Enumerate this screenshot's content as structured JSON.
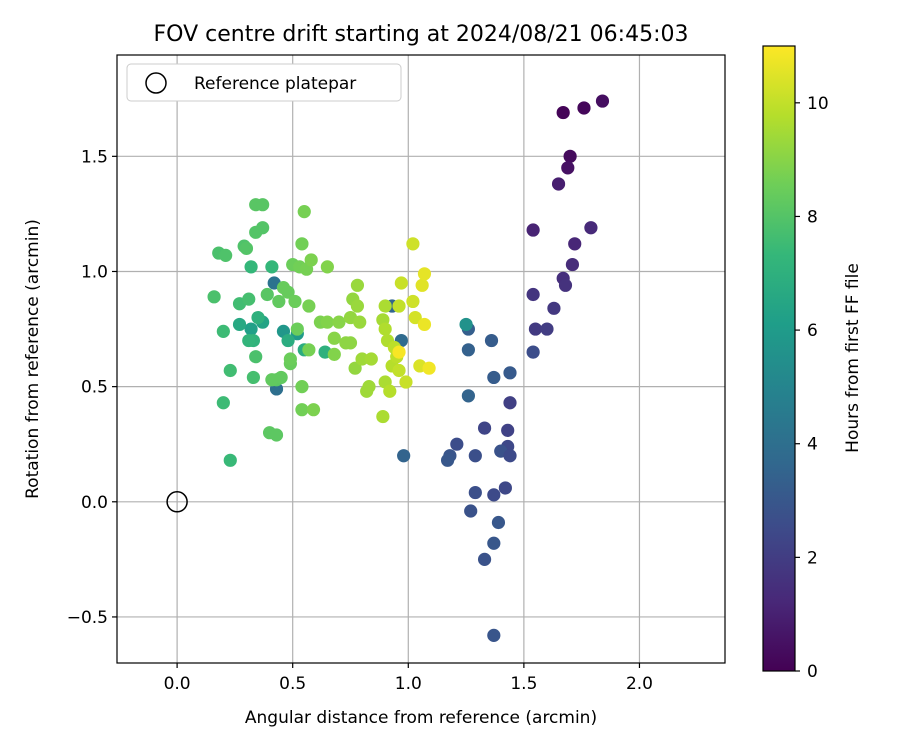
{
  "chart_data": {
    "type": "scatter",
    "title": "FOV centre drift starting at 2024/08/21 06:45:03",
    "xlabel": "Angular distance from reference (arcmin)",
    "ylabel": "Rotation from reference (arcmin)",
    "xlim": [
      -0.26,
      2.37
    ],
    "ylim": [
      -0.7,
      1.94
    ],
    "x_ticks": [
      0.0,
      0.5,
      1.0,
      1.5,
      2.0
    ],
    "x_tick_labels": [
      "0.0",
      "0.5",
      "1.0",
      "1.5",
      "2.0"
    ],
    "y_ticks": [
      -0.5,
      0.0,
      0.5,
      1.0,
      1.5
    ],
    "y_tick_labels": [
      "−0.5",
      "0.0",
      "0.5",
      "1.0",
      "1.5"
    ],
    "grid": true,
    "legend": {
      "placement": "top-left",
      "entries": [
        "Reference platepar"
      ]
    },
    "reference_point": {
      "x": 0.0,
      "y": 0.0,
      "label": "Reference platepar"
    },
    "colorbar": {
      "label": "Hours from first FF file",
      "colormap": "viridis",
      "range": [
        0,
        11
      ],
      "ticks": [
        0,
        2,
        4,
        6,
        8,
        10
      ],
      "tick_labels": [
        "0",
        "2",
        "4",
        "6",
        "8",
        "10"
      ]
    },
    "color_ramp": [
      "#440154",
      "#482878",
      "#3e4989",
      "#31688e",
      "#26828e",
      "#1f9e89",
      "#35b779",
      "#6ece58",
      "#b5de2b",
      "#fde725"
    ],
    "points": [
      {
        "x": 1.67,
        "y": 1.69,
        "h": 0.1
      },
      {
        "x": 1.76,
        "y": 1.71,
        "h": 0.2
      },
      {
        "x": 1.84,
        "y": 1.74,
        "h": 0.4
      },
      {
        "x": 1.7,
        "y": 1.5,
        "h": 0.3
      },
      {
        "x": 1.69,
        "y": 1.45,
        "h": 0.5
      },
      {
        "x": 1.65,
        "y": 1.38,
        "h": 0.9
      },
      {
        "x": 1.54,
        "y": 1.18,
        "h": 1.1
      },
      {
        "x": 1.72,
        "y": 1.12,
        "h": 1.2
      },
      {
        "x": 1.79,
        "y": 1.19,
        "h": 1.3
      },
      {
        "x": 1.71,
        "y": 1.03,
        "h": 1.4
      },
      {
        "x": 1.67,
        "y": 0.97,
        "h": 1.5
      },
      {
        "x": 1.68,
        "y": 0.94,
        "h": 1.6
      },
      {
        "x": 1.54,
        "y": 0.9,
        "h": 1.7
      },
      {
        "x": 1.63,
        "y": 0.84,
        "h": 1.8
      },
      {
        "x": 1.55,
        "y": 0.75,
        "h": 1.9
      },
      {
        "x": 1.6,
        "y": 0.75,
        "h": 2.0
      },
      {
        "x": 1.44,
        "y": 0.43,
        "h": 2.1
      },
      {
        "x": 1.54,
        "y": 0.65,
        "h": 2.6
      },
      {
        "x": 1.44,
        "y": 0.56,
        "h": 3.1
      },
      {
        "x": 1.37,
        "y": 0.54,
        "h": 3.2
      },
      {
        "x": 1.36,
        "y": 0.7,
        "h": 3.2
      },
      {
        "x": 1.26,
        "y": 0.75,
        "h": 3.3
      },
      {
        "x": 1.26,
        "y": 0.66,
        "h": 3.4
      },
      {
        "x": 1.26,
        "y": 0.46,
        "h": 3.5
      },
      {
        "x": 1.33,
        "y": 0.32,
        "h": 2.3
      },
      {
        "x": 1.43,
        "y": 0.31,
        "h": 2.2
      },
      {
        "x": 1.43,
        "y": 0.24,
        "h": 2.4
      },
      {
        "x": 1.4,
        "y": 0.22,
        "h": 2.8
      },
      {
        "x": 1.44,
        "y": 0.2,
        "h": 2.5
      },
      {
        "x": 1.29,
        "y": 0.2,
        "h": 2.7
      },
      {
        "x": 1.21,
        "y": 0.25,
        "h": 2.6
      },
      {
        "x": 1.18,
        "y": 0.2,
        "h": 2.9
      },
      {
        "x": 1.17,
        "y": 0.18,
        "h": 3.0
      },
      {
        "x": 1.42,
        "y": 0.06,
        "h": 2.4
      },
      {
        "x": 1.37,
        "y": 0.03,
        "h": 2.5
      },
      {
        "x": 1.29,
        "y": 0.04,
        "h": 2.7
      },
      {
        "x": 1.27,
        "y": -0.04,
        "h": 2.8
      },
      {
        "x": 1.39,
        "y": -0.09,
        "h": 3.0
      },
      {
        "x": 1.37,
        "y": -0.18,
        "h": 3.0
      },
      {
        "x": 1.33,
        "y": -0.25,
        "h": 2.8
      },
      {
        "x": 1.37,
        "y": -0.58,
        "h": 2.9
      },
      {
        "x": 0.98,
        "y": 0.2,
        "h": 3.5
      },
      {
        "x": 0.93,
        "y": 0.85,
        "h": 3.6
      },
      {
        "x": 0.97,
        "y": 0.7,
        "h": 3.8
      },
      {
        "x": 0.43,
        "y": 0.49,
        "h": 4.0
      },
      {
        "x": 0.42,
        "y": 0.95,
        "h": 4.2
      },
      {
        "x": 1.25,
        "y": 0.77,
        "h": 5.6
      },
      {
        "x": 0.46,
        "y": 0.74,
        "h": 5.8
      },
      {
        "x": 0.52,
        "y": 0.73,
        "h": 6.0
      },
      {
        "x": 0.32,
        "y": 0.75,
        "h": 6.2
      },
      {
        "x": 0.37,
        "y": 0.78,
        "h": 6.4
      },
      {
        "x": 0.27,
        "y": 0.77,
        "h": 6.6
      },
      {
        "x": 0.48,
        "y": 0.7,
        "h": 6.8
      },
      {
        "x": 0.55,
        "y": 0.66,
        "h": 6.8
      },
      {
        "x": 0.64,
        "y": 0.65,
        "h": 7.0
      },
      {
        "x": 0.35,
        "y": 0.8,
        "h": 7.0
      },
      {
        "x": 0.33,
        "y": 0.7,
        "h": 7.1
      },
      {
        "x": 0.31,
        "y": 0.7,
        "h": 7.2
      },
      {
        "x": 0.41,
        "y": 1.02,
        "h": 7.3
      },
      {
        "x": 0.32,
        "y": 1.02,
        "h": 7.3
      },
      {
        "x": 0.23,
        "y": 0.18,
        "h": 7.4
      },
      {
        "x": 0.2,
        "y": 0.43,
        "h": 7.5
      },
      {
        "x": 0.2,
        "y": 0.74,
        "h": 7.5
      },
      {
        "x": 0.23,
        "y": 0.57,
        "h": 7.6
      },
      {
        "x": 0.27,
        "y": 0.86,
        "h": 7.6
      },
      {
        "x": 0.31,
        "y": 0.88,
        "h": 7.7
      },
      {
        "x": 0.33,
        "y": 0.54,
        "h": 7.7
      },
      {
        "x": 0.34,
        "y": 0.63,
        "h": 7.8
      },
      {
        "x": 0.16,
        "y": 0.89,
        "h": 7.8
      },
      {
        "x": 0.18,
        "y": 1.08,
        "h": 7.8
      },
      {
        "x": 0.21,
        "y": 1.07,
        "h": 7.9
      },
      {
        "x": 0.29,
        "y": 1.11,
        "h": 7.9
      },
      {
        "x": 0.3,
        "y": 1.1,
        "h": 8.0
      },
      {
        "x": 0.34,
        "y": 1.17,
        "h": 8.0
      },
      {
        "x": 0.37,
        "y": 1.19,
        "h": 8.0
      },
      {
        "x": 0.34,
        "y": 1.29,
        "h": 8.1
      },
      {
        "x": 0.37,
        "y": 1.29,
        "h": 8.1
      },
      {
        "x": 0.39,
        "y": 0.9,
        "h": 8.1
      },
      {
        "x": 0.4,
        "y": 0.3,
        "h": 8.2
      },
      {
        "x": 0.43,
        "y": 0.29,
        "h": 8.2
      },
      {
        "x": 0.43,
        "y": 0.53,
        "h": 8.2
      },
      {
        "x": 0.45,
        "y": 0.54,
        "h": 8.3
      },
      {
        "x": 0.41,
        "y": 0.53,
        "h": 8.3
      },
      {
        "x": 0.44,
        "y": 0.87,
        "h": 8.3
      },
      {
        "x": 0.46,
        "y": 0.93,
        "h": 8.4
      },
      {
        "x": 0.48,
        "y": 0.91,
        "h": 8.4
      },
      {
        "x": 0.49,
        "y": 0.6,
        "h": 8.4
      },
      {
        "x": 0.49,
        "y": 0.62,
        "h": 8.5
      },
      {
        "x": 0.5,
        "y": 1.03,
        "h": 8.5
      },
      {
        "x": 0.51,
        "y": 0.87,
        "h": 8.5
      },
      {
        "x": 0.52,
        "y": 0.75,
        "h": 8.5
      },
      {
        "x": 0.53,
        "y": 1.02,
        "h": 8.6
      },
      {
        "x": 0.54,
        "y": 1.12,
        "h": 8.6
      },
      {
        "x": 0.54,
        "y": 0.5,
        "h": 8.6
      },
      {
        "x": 0.54,
        "y": 0.4,
        "h": 8.6
      },
      {
        "x": 0.55,
        "y": 1.26,
        "h": 8.7
      },
      {
        "x": 0.56,
        "y": 1.01,
        "h": 8.7
      },
      {
        "x": 0.57,
        "y": 0.85,
        "h": 8.7
      },
      {
        "x": 0.57,
        "y": 0.66,
        "h": 8.7
      },
      {
        "x": 0.58,
        "y": 1.05,
        "h": 8.8
      },
      {
        "x": 0.59,
        "y": 0.4,
        "h": 8.8
      },
      {
        "x": 0.62,
        "y": 0.78,
        "h": 8.8
      },
      {
        "x": 0.65,
        "y": 1.02,
        "h": 8.9
      },
      {
        "x": 0.65,
        "y": 0.78,
        "h": 8.9
      },
      {
        "x": 0.68,
        "y": 0.64,
        "h": 8.9
      },
      {
        "x": 0.68,
        "y": 0.71,
        "h": 9.0
      },
      {
        "x": 0.7,
        "y": 0.78,
        "h": 9.0
      },
      {
        "x": 0.73,
        "y": 0.69,
        "h": 9.1
      },
      {
        "x": 0.75,
        "y": 0.69,
        "h": 9.1
      },
      {
        "x": 0.75,
        "y": 0.8,
        "h": 9.2
      },
      {
        "x": 0.76,
        "y": 0.88,
        "h": 9.2
      },
      {
        "x": 0.77,
        "y": 0.58,
        "h": 9.2
      },
      {
        "x": 0.78,
        "y": 0.94,
        "h": 9.3
      },
      {
        "x": 0.78,
        "y": 0.85,
        "h": 9.3
      },
      {
        "x": 0.79,
        "y": 0.78,
        "h": 9.3
      },
      {
        "x": 0.8,
        "y": 0.62,
        "h": 9.4
      },
      {
        "x": 0.82,
        "y": 0.48,
        "h": 9.4
      },
      {
        "x": 0.83,
        "y": 0.5,
        "h": 9.4
      },
      {
        "x": 0.84,
        "y": 0.62,
        "h": 9.5
      },
      {
        "x": 0.89,
        "y": 0.79,
        "h": 9.5
      },
      {
        "x": 0.89,
        "y": 0.37,
        "h": 9.6
      },
      {
        "x": 0.9,
        "y": 0.85,
        "h": 9.6
      },
      {
        "x": 0.9,
        "y": 0.52,
        "h": 9.6
      },
      {
        "x": 0.9,
        "y": 0.75,
        "h": 9.7
      },
      {
        "x": 0.91,
        "y": 0.7,
        "h": 9.7
      },
      {
        "x": 0.92,
        "y": 0.48,
        "h": 9.8
      },
      {
        "x": 0.93,
        "y": 0.59,
        "h": 9.8
      },
      {
        "x": 0.94,
        "y": 0.67,
        "h": 9.9
      },
      {
        "x": 0.95,
        "y": 0.63,
        "h": 9.9
      },
      {
        "x": 0.96,
        "y": 0.57,
        "h": 10.0
      },
      {
        "x": 0.96,
        "y": 0.85,
        "h": 10.0
      },
      {
        "x": 0.97,
        "y": 0.95,
        "h": 10.1
      },
      {
        "x": 0.99,
        "y": 0.52,
        "h": 10.1
      },
      {
        "x": 1.02,
        "y": 1.12,
        "h": 10.2
      },
      {
        "x": 1.02,
        "y": 0.87,
        "h": 10.2
      },
      {
        "x": 1.03,
        "y": 0.8,
        "h": 10.3
      },
      {
        "x": 1.05,
        "y": 0.59,
        "h": 10.4
      },
      {
        "x": 1.06,
        "y": 0.94,
        "h": 10.5
      },
      {
        "x": 1.07,
        "y": 0.99,
        "h": 10.6
      },
      {
        "x": 1.07,
        "y": 0.77,
        "h": 10.7
      },
      {
        "x": 1.09,
        "y": 0.58,
        "h": 10.8
      },
      {
        "x": 0.96,
        "y": 0.65,
        "h": 10.9
      }
    ]
  }
}
